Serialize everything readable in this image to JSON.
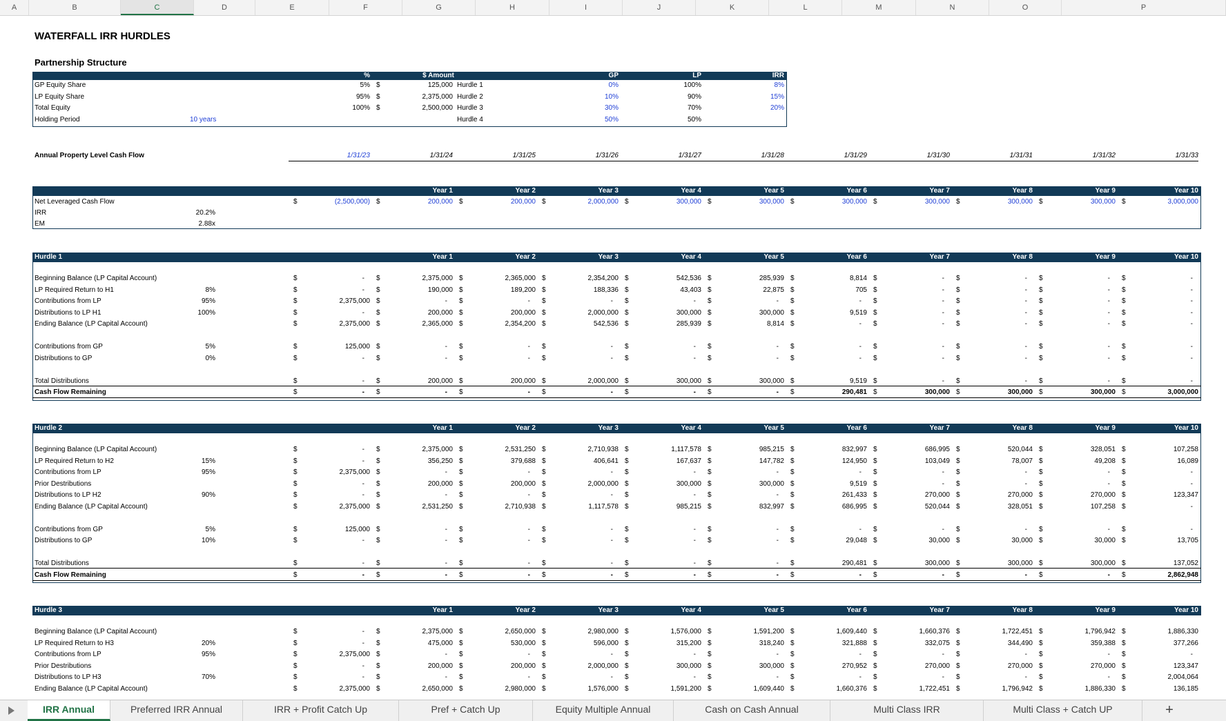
{
  "columns": [
    "A",
    "B",
    "C",
    "D",
    "E",
    "F",
    "G",
    "H",
    "I",
    "J",
    "K",
    "L",
    "M",
    "N",
    "O",
    "P"
  ],
  "selected_column": "C",
  "title": "WATERFALL IRR HURDLES",
  "partnership": {
    "heading": "Partnership Structure",
    "headers": {
      "pct": "%",
      "amount": "$ Amount",
      "gp": "GP",
      "lp": "LP",
      "irr": "IRR"
    },
    "rows": [
      {
        "label": "GP Equity Share",
        "pct": "5%",
        "amount": "125,000",
        "hurdle": "Hurdle 1",
        "gp": "0%",
        "lp": "100%",
        "irr": "8%"
      },
      {
        "label": "LP Equity Share",
        "pct": "95%",
        "amount": "2,375,000",
        "hurdle": "Hurdle 2",
        "gp": "10%",
        "lp": "90%",
        "irr": "15%"
      },
      {
        "label": "Total Equity",
        "pct": "100%",
        "amount": "2,500,000",
        "hurdle": "Hurdle 3",
        "gp": "30%",
        "lp": "70%",
        "irr": "20%"
      },
      {
        "label": "Holding Period",
        "holding": "10 years",
        "pct": "",
        "amount": "",
        "hurdle": "Hurdle 4",
        "gp": "50%",
        "lp": "50%",
        "irr": ""
      }
    ]
  },
  "annual_cf_label": "Annual Property Level Cash Flow",
  "dates": [
    "1/31/23",
    "1/31/24",
    "1/31/25",
    "1/31/26",
    "1/31/27",
    "1/31/28",
    "1/31/29",
    "1/31/30",
    "1/31/31",
    "1/31/32",
    "1/31/33"
  ],
  "years": [
    "Year 1",
    "Year 2",
    "Year 3",
    "Year 4",
    "Year 5",
    "Year 6",
    "Year 7",
    "Year 8",
    "Year 9",
    "Year 10"
  ],
  "nlcf": {
    "label": "Net Leveraged Cash Flow",
    "values": [
      "(2,500,000)",
      "200,000",
      "200,000",
      "2,000,000",
      "300,000",
      "300,000",
      "300,000",
      "300,000",
      "300,000",
      "300,000",
      "3,000,000"
    ],
    "irr_label": "IRR",
    "irr": "20.2%",
    "em_label": "EM",
    "em": "2.88x"
  },
  "hurdles": [
    {
      "title": "Hurdle 1",
      "rows": [
        {
          "label": "Beginning Balance (LP Capital Account)",
          "pct": "",
          "values": [
            "-",
            "2,375,000",
            "2,365,000",
            "2,354,200",
            "542,536",
            "285,939",
            "8,814",
            "-",
            "-",
            "-",
            "-"
          ],
          "style": ""
        },
        {
          "label": "LP Required Return to H1",
          "pct": "8%",
          "values": [
            "-",
            "190,000",
            "189,200",
            "188,336",
            "43,403",
            "22,875",
            "705",
            "-",
            "-",
            "-",
            "-"
          ],
          "style": ""
        },
        {
          "label": "Contributions from LP",
          "pct": "95%",
          "values": [
            "2,375,000",
            "-",
            "-",
            "-",
            "-",
            "-",
            "-",
            "-",
            "-",
            "-",
            "-"
          ],
          "style": ""
        },
        {
          "label": "Distributions to LP H1",
          "pct": "100%",
          "values": [
            "-",
            "200,000",
            "200,000",
            "2,000,000",
            "300,000",
            "300,000",
            "9,519",
            "-",
            "-",
            "-",
            "-"
          ],
          "style": ""
        },
        {
          "label": "Ending Balance (LP Capital Account)",
          "pct": "",
          "values": [
            "2,375,000",
            "2,365,000",
            "2,354,200",
            "542,536",
            "285,939",
            "8,814",
            "-",
            "-",
            "-",
            "-",
            "-"
          ],
          "style": ""
        },
        {
          "gap": true
        },
        {
          "label": "Contributions from GP",
          "pct": "5%",
          "values": [
            "125,000",
            "-",
            "-",
            "-",
            "-",
            "-",
            "-",
            "-",
            "-",
            "-",
            "-"
          ],
          "style": ""
        },
        {
          "label": "Distributions to GP",
          "pct": "0%",
          "values": [
            "-",
            "-",
            "-",
            "-",
            "-",
            "-",
            "-",
            "-",
            "-",
            "-",
            "-"
          ],
          "style": ""
        },
        {
          "gap": true
        },
        {
          "label": "Total Distributions",
          "pct": "",
          "values": [
            "-",
            "200,000",
            "200,000",
            "2,000,000",
            "300,000",
            "300,000",
            "9,519",
            "-",
            "-",
            "-",
            "-"
          ],
          "style": "total"
        },
        {
          "label": "Cash Flow Remaining",
          "pct": "",
          "values": [
            "-",
            "-",
            "-",
            "-",
            "-",
            "-",
            "290,481",
            "300,000",
            "300,000",
            "300,000",
            "3,000,000"
          ],
          "style": "remain"
        }
      ]
    },
    {
      "title": "Hurdle 2",
      "rows": [
        {
          "label": "Beginning Balance (LP Capital Account)",
          "pct": "",
          "values": [
            "-",
            "2,375,000",
            "2,531,250",
            "2,710,938",
            "1,117,578",
            "985,215",
            "832,997",
            "686,995",
            "520,044",
            "328,051",
            "107,258"
          ],
          "style": ""
        },
        {
          "label": "LP Required Return to H2",
          "pct": "15%",
          "values": [
            "-",
            "356,250",
            "379,688",
            "406,641",
            "167,637",
            "147,782",
            "124,950",
            "103,049",
            "78,007",
            "49,208",
            "16,089"
          ],
          "style": ""
        },
        {
          "label": "Contributions from LP",
          "pct": "95%",
          "values": [
            "2,375,000",
            "-",
            "-",
            "-",
            "-",
            "-",
            "-",
            "-",
            "-",
            "-",
            "-"
          ],
          "style": ""
        },
        {
          "label": "Prior Destributions",
          "pct": "",
          "values": [
            "-",
            "200,000",
            "200,000",
            "2,000,000",
            "300,000",
            "300,000",
            "9,519",
            "-",
            "-",
            "-",
            "-"
          ],
          "style": ""
        },
        {
          "label": "Distributions to LP H2",
          "pct": "90%",
          "values": [
            "-",
            "-",
            "-",
            "-",
            "-",
            "-",
            "261,433",
            "270,000",
            "270,000",
            "270,000",
            "123,347"
          ],
          "style": ""
        },
        {
          "label": "Ending Balance (LP Capital Account)",
          "pct": "",
          "values": [
            "2,375,000",
            "2,531,250",
            "2,710,938",
            "1,117,578",
            "985,215",
            "832,997",
            "686,995",
            "520,044",
            "328,051",
            "107,258",
            "-"
          ],
          "style": ""
        },
        {
          "gap": true
        },
        {
          "label": "Contributions from GP",
          "pct": "5%",
          "values": [
            "125,000",
            "-",
            "-",
            "-",
            "-",
            "-",
            "-",
            "-",
            "-",
            "-",
            "-"
          ],
          "style": ""
        },
        {
          "label": "Distributions to GP",
          "pct": "10%",
          "values": [
            "-",
            "-",
            "-",
            "-",
            "-",
            "-",
            "29,048",
            "30,000",
            "30,000",
            "30,000",
            "13,705"
          ],
          "style": ""
        },
        {
          "gap": true
        },
        {
          "label": "Total Distributions",
          "pct": "",
          "values": [
            "-",
            "-",
            "-",
            "-",
            "-",
            "-",
            "290,481",
            "300,000",
            "300,000",
            "300,000",
            "137,052"
          ],
          "style": "total"
        },
        {
          "label": "Cash Flow Remaining",
          "pct": "",
          "values": [
            "-",
            "-",
            "-",
            "-",
            "-",
            "-",
            "-",
            "-",
            "-",
            "-",
            "2,862,948"
          ],
          "style": "remain"
        }
      ]
    },
    {
      "title": "Hurdle 3",
      "rows": [
        {
          "label": "Beginning Balance (LP Capital Account)",
          "pct": "",
          "values": [
            "-",
            "2,375,000",
            "2,650,000",
            "2,980,000",
            "1,576,000",
            "1,591,200",
            "1,609,440",
            "1,660,376",
            "1,722,451",
            "1,796,942",
            "1,886,330"
          ],
          "style": ""
        },
        {
          "label": "LP Required Return to H3",
          "pct": "20%",
          "values": [
            "-",
            "475,000",
            "530,000",
            "596,000",
            "315,200",
            "318,240",
            "321,888",
            "332,075",
            "344,490",
            "359,388",
            "377,266"
          ],
          "style": ""
        },
        {
          "label": "Contributions from LP",
          "pct": "95%",
          "values": [
            "2,375,000",
            "-",
            "-",
            "-",
            "-",
            "-",
            "-",
            "-",
            "-",
            "-",
            "-"
          ],
          "style": ""
        },
        {
          "label": "Prior Destributions",
          "pct": "",
          "values": [
            "-",
            "200,000",
            "200,000",
            "2,000,000",
            "300,000",
            "300,000",
            "270,952",
            "270,000",
            "270,000",
            "270,000",
            "123,347"
          ],
          "style": ""
        },
        {
          "label": "Distributions to LP H3",
          "pct": "70%",
          "values": [
            "-",
            "-",
            "-",
            "-",
            "-",
            "-",
            "-",
            "-",
            "-",
            "-",
            "2,004,064"
          ],
          "style": ""
        },
        {
          "label": "Ending Balance (LP Capital Account)",
          "pct": "",
          "values": [
            "2,375,000",
            "2,650,000",
            "2,980,000",
            "1,576,000",
            "1,591,200",
            "1,609,440",
            "1,660,376",
            "1,722,451",
            "1,796,942",
            "1,886,330",
            "136,185"
          ],
          "style": ""
        }
      ]
    }
  ],
  "tabs": [
    "IRR Annual",
    "Preferred IRR Annual",
    "IRR + Profit Catch Up",
    "Pref + Catch Up",
    "Equity Multiple Annual",
    "Cash on Cash Annual",
    "Multi Class IRR",
    "Multi Class + Catch UP"
  ],
  "active_tab": 0,
  "icons": {
    "play": "play-triangle-icon",
    "add": "plus-icon"
  },
  "colors": {
    "header_bg": "#123a57",
    "input_blue": "#1f3fd6",
    "excel_green": "#217346"
  }
}
